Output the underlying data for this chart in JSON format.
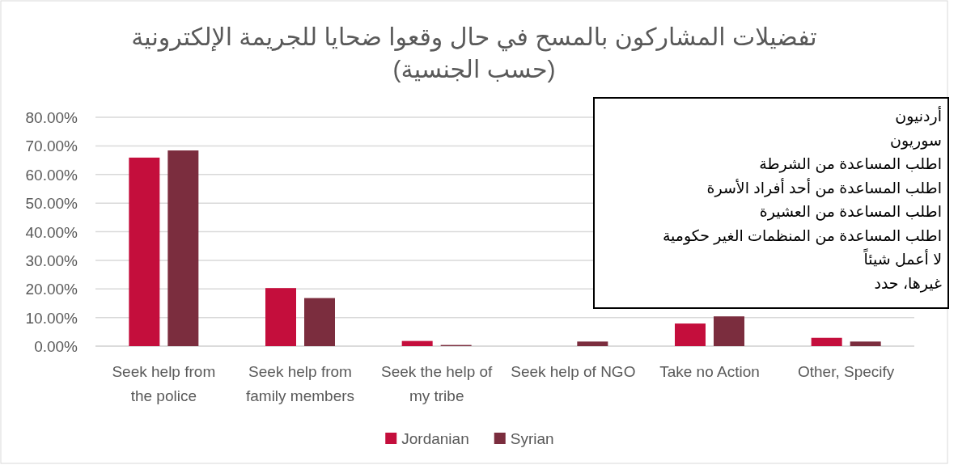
{
  "chart_data": {
    "type": "bar",
    "title": "تفضيلات المشاركون بالمسح في حال وقعوا ضحايا للجريمة الإلكترونية (حسب الجنسية)",
    "categories": [
      "Seek help from the police",
      "Seek help from family members",
      "Seek the help of my tribe",
      "Seek help of NGO",
      "Take no Action",
      "Other, Specify"
    ],
    "series": [
      {
        "name": "Jordanian",
        "color": "#c40e3c",
        "values": [
          65.9,
          20.3,
          1.8,
          0,
          7.9,
          2.9
        ]
      },
      {
        "name": "Syrian",
        "color": "#7b2d3e",
        "values": [
          68.4,
          16.8,
          0.4,
          1.6,
          10.4,
          1.6
        ]
      }
    ],
    "ylim": [
      0,
      80
    ],
    "yticks": [
      {
        "value": 0,
        "label": "0.00%"
      },
      {
        "value": 10,
        "label": "10.00%"
      },
      {
        "value": 20,
        "label": "20.00%"
      },
      {
        "value": 30,
        "label": "30.00%"
      },
      {
        "value": 40,
        "label": "40.00%"
      },
      {
        "value": 50,
        "label": "50.00%"
      },
      {
        "value": 60,
        "label": "60.00%"
      },
      {
        "value": 70,
        "label": "70.00%"
      },
      {
        "value": 80,
        "label": "80.00%"
      }
    ],
    "grid": "y",
    "legend": "bottom",
    "annotations": [
      "أردنيون",
      "سوريون",
      "اطلب المساعدة من الشرطة",
      "اطلب المساعدة من أحد أفراد الأسرة",
      "اطلب المساعدة من العشيرة",
      "اطلب المساعدة من المنظمات الغير حكومية",
      "لا أعمل شيئاً",
      "غيرها، حدد"
    ]
  }
}
